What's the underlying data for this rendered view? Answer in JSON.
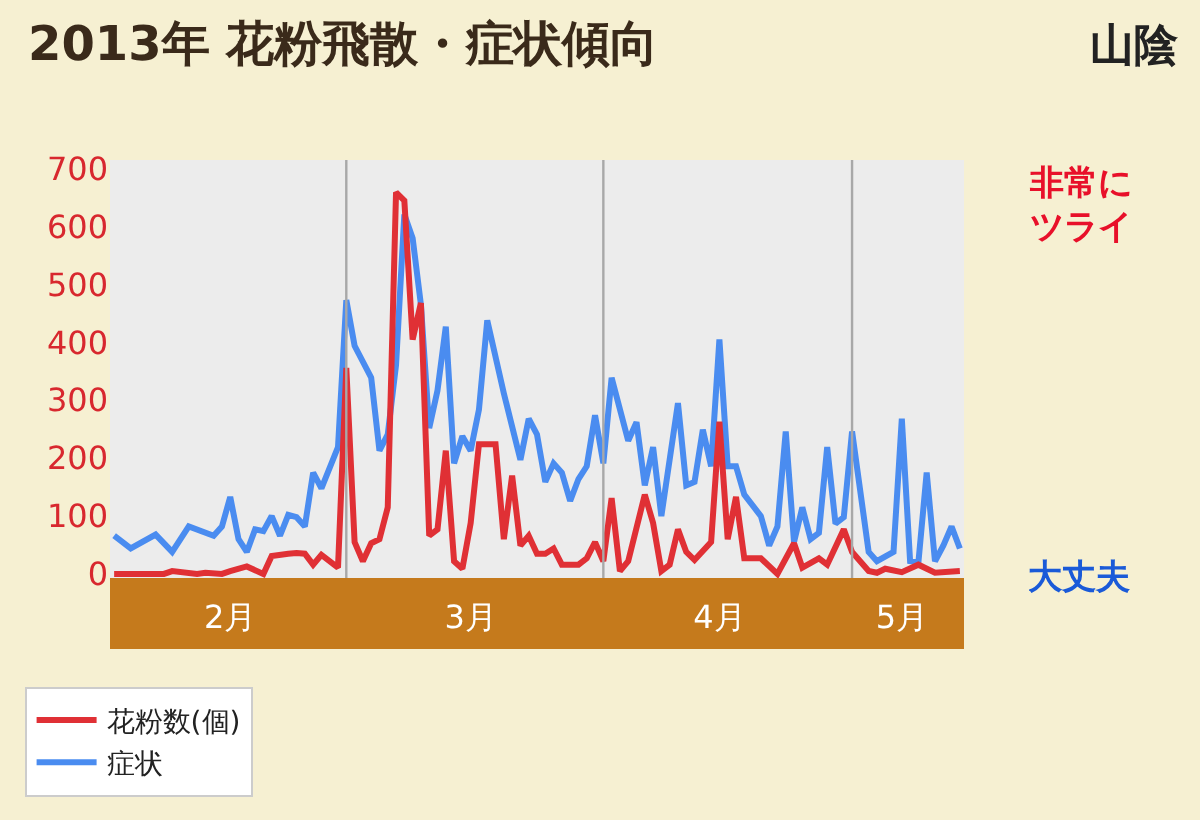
{
  "chart_data": {
    "type": "line",
    "title": "2013年 花粉飛散・症状傾向",
    "subtitle": "山陰",
    "xlim": [
      "2013-01-31T12:00",
      "2013-05-14T12:00"
    ],
    "xticks": [
      {
        "value": "2013-02-15",
        "label": "2月"
      },
      {
        "value": "2013-03-16",
        "label": "3月"
      },
      {
        "value": "2013-04-15",
        "label": "4月"
      },
      {
        "value": "2013-05-07",
        "label": "5月"
      }
    ],
    "ylim": [
      -7,
      715
    ],
    "yticks": [
      0,
      100,
      200,
      300,
      400,
      500,
      600,
      700
    ],
    "annotations": [
      "非常にツライ",
      "大丈夫"
    ],
    "grid": false,
    "legend": "bottom left",
    "marker": "none",
    "line_style": "solid",
    "ref_lines": [
      {
        "axis": "x",
        "value": "2013-03-01",
        "label": null,
        "color": "#a8a8a8"
      },
      {
        "axis": "x",
        "value": "2013-04-01",
        "label": null,
        "color": "#a8a8a8"
      },
      {
        "axis": "x",
        "value": "2013-05-01",
        "label": null,
        "color": "#a8a8a8"
      }
    ],
    "series": [
      {
        "name": "症状",
        "color": "#4a8cf0",
        "x": [
          "2013-02-01",
          "2013-02-03",
          "2013-02-06",
          "2013-02-08",
          "2013-02-10",
          "2013-02-13",
          "2013-02-14",
          "2013-02-15",
          "2013-02-16",
          "2013-02-17",
          "2013-02-18",
          "2013-02-19",
          "2013-02-20",
          "2013-02-21",
          "2013-02-22",
          "2013-02-23",
          "2013-02-24",
          "2013-02-25",
          "2013-02-26",
          "2013-02-28",
          "2013-03-01",
          "2013-03-02",
          "2013-03-04",
          "2013-03-05",
          "2013-03-06",
          "2013-03-07",
          "2013-03-08",
          "2013-03-09",
          "2013-03-10",
          "2013-03-11",
          "2013-03-12",
          "2013-03-13",
          "2013-03-14",
          "2013-03-15",
          "2013-03-16",
          "2013-03-17",
          "2013-03-18",
          "2013-03-20",
          "2013-03-22",
          "2013-03-23",
          "2013-03-24",
          "2013-03-25",
          "2013-03-26",
          "2013-03-27",
          "2013-03-28",
          "2013-03-29",
          "2013-03-30",
          "2013-03-31",
          "2013-04-01",
          "2013-04-02",
          "2013-04-04",
          "2013-04-05",
          "2013-04-06",
          "2013-04-07",
          "2013-04-08",
          "2013-04-10",
          "2013-04-11",
          "2013-04-12",
          "2013-04-13",
          "2013-04-14",
          "2013-04-15",
          "2013-04-16",
          "2013-04-17",
          "2013-04-18",
          "2013-04-20",
          "2013-04-21",
          "2013-04-22",
          "2013-04-23",
          "2013-04-24",
          "2013-04-25",
          "2013-04-26",
          "2013-04-27",
          "2013-04-28",
          "2013-04-29",
          "2013-04-30",
          "2013-05-01",
          "2013-05-03",
          "2013-05-04",
          "2013-05-06",
          "2013-05-07",
          "2013-05-08",
          "2013-05-09",
          "2013-05-10",
          "2013-05-11",
          "2013-05-12",
          "2013-05-13",
          "2013-05-14"
        ],
        "values": [
          66,
          44,
          68,
          38,
          82,
          66,
          82,
          133,
          60,
          38,
          77,
          74,
          100,
          66,
          102,
          98,
          82,
          175,
          148,
          219,
          473,
          394,
          339,
          213,
          241,
          361,
          621,
          580,
          465,
          252,
          317,
          427,
          191,
          238,
          213,
          284,
          438,
          312,
          197,
          268,
          241,
          159,
          191,
          175,
          126,
          164,
          186,
          274,
          191,
          339,
          230,
          262,
          153,
          219,
          100,
          295,
          153,
          159,
          249,
          186,
          405,
          186,
          186,
          137,
          100,
          49,
          82,
          246,
          55,
          115,
          60,
          71,
          219,
          87,
          98,
          246,
          38,
          22,
          38,
          268,
          22,
          20,
          175,
          22,
          49,
          82,
          44
        ]
      },
      {
        "name": "花粉数(個)",
        "color": "#e03035",
        "x": [
          "2013-02-01",
          "2013-02-07",
          "2013-02-08",
          "2013-02-11",
          "2013-02-12",
          "2013-02-14",
          "2013-02-15",
          "2013-02-17",
          "2013-02-19",
          "2013-02-20",
          "2013-02-22",
          "2013-02-23",
          "2013-02-24",
          "2013-02-25",
          "2013-02-26",
          "2013-02-28",
          "2013-03-01",
          "2013-03-02",
          "2013-03-03",
          "2013-03-04",
          "2013-03-05",
          "2013-03-06",
          "2013-03-07",
          "2013-03-08",
          "2013-03-09",
          "2013-03-10",
          "2013-03-11",
          "2013-03-12",
          "2013-03-13",
          "2013-03-14",
          "2013-03-15",
          "2013-03-16",
          "2013-03-17",
          "2013-03-19",
          "2013-03-20",
          "2013-03-21",
          "2013-03-22",
          "2013-03-23",
          "2013-03-24",
          "2013-03-25",
          "2013-03-26",
          "2013-03-27",
          "2013-03-29",
          "2013-03-30",
          "2013-03-31",
          "2013-04-01",
          "2013-04-02",
          "2013-04-03",
          "2013-04-04",
          "2013-04-06",
          "2013-04-07",
          "2013-04-08",
          "2013-04-09",
          "2013-04-10",
          "2013-04-11",
          "2013-04-12",
          "2013-04-14",
          "2013-04-15",
          "2013-04-16",
          "2013-04-17",
          "2013-04-18",
          "2013-04-20",
          "2013-04-22",
          "2013-04-24",
          "2013-04-25",
          "2013-04-27",
          "2013-04-28",
          "2013-04-30",
          "2013-05-01",
          "2013-05-03",
          "2013-05-04",
          "2013-05-05",
          "2013-05-07",
          "2013-05-09",
          "2013-05-11",
          "2013-05-14"
        ],
        "values": [
          0,
          0,
          5,
          0,
          2,
          0,
          5,
          13,
          0,
          31,
          35,
          36,
          35,
          16,
          33,
          11,
          356,
          55,
          22,
          53,
          60,
          115,
          659,
          645,
          405,
          468,
          66,
          77,
          213,
          22,
          9,
          88,
          224,
          224,
          60,
          170,
          49,
          66,
          35,
          35,
          44,
          16,
          16,
          27,
          55,
          22,
          131,
          5,
          22,
          137,
          88,
          5,
          16,
          77,
          38,
          24,
          55,
          263,
          60,
          133,
          27,
          27,
          0,
          53,
          11,
          27,
          16,
          77,
          38,
          5,
          2,
          9,
          3,
          16,
          2,
          5
        ]
      }
    ]
  }
}
